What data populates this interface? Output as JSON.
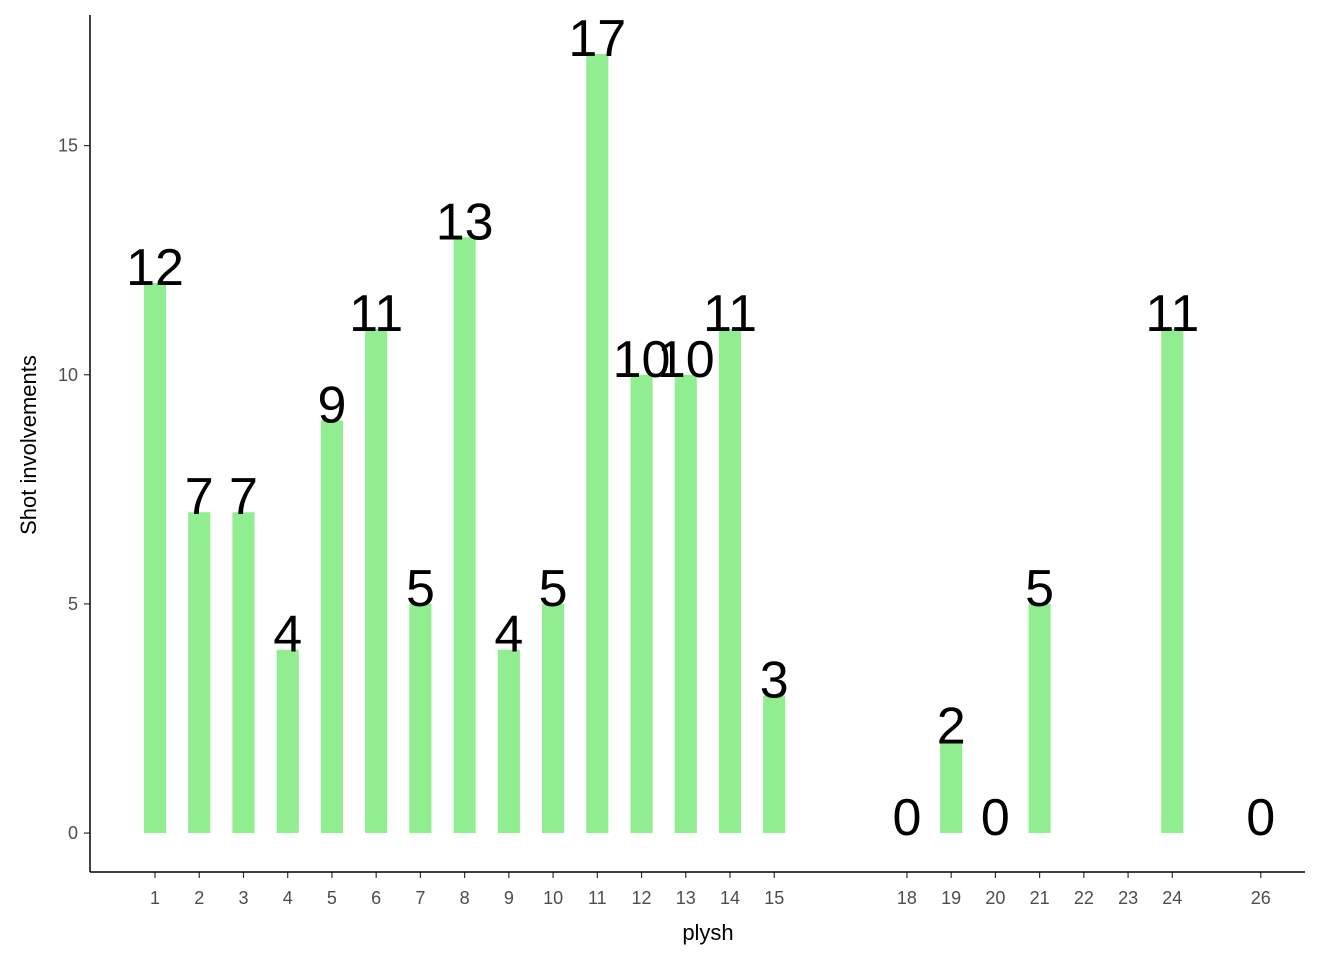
{
  "chart_data": {
    "type": "bar",
    "x_label": "plysh",
    "y_label": "Shot involvements",
    "x": [
      1,
      2,
      3,
      4,
      5,
      6,
      7,
      8,
      9,
      10,
      11,
      12,
      13,
      14,
      15,
      18,
      19,
      20,
      21,
      24,
      26
    ],
    "values": [
      12,
      7,
      7,
      4,
      9,
      11,
      5,
      13,
      4,
      5,
      17,
      10,
      10,
      11,
      3,
      0,
      2,
      0,
      5,
      11,
      0
    ],
    "color": "#90ee90",
    "xlim": [
      -0.47,
      27.0
    ],
    "xticks": [
      1,
      2,
      3,
      4,
      5,
      6,
      7,
      8,
      9,
      10,
      11,
      12,
      13,
      14,
      15,
      18,
      19,
      20,
      21,
      22,
      23,
      24,
      26
    ],
    "ylim": [
      -0.85,
      17.85
    ],
    "yticks": [
      0,
      5,
      10,
      15
    ],
    "grid": false,
    "data_labels": true
  }
}
